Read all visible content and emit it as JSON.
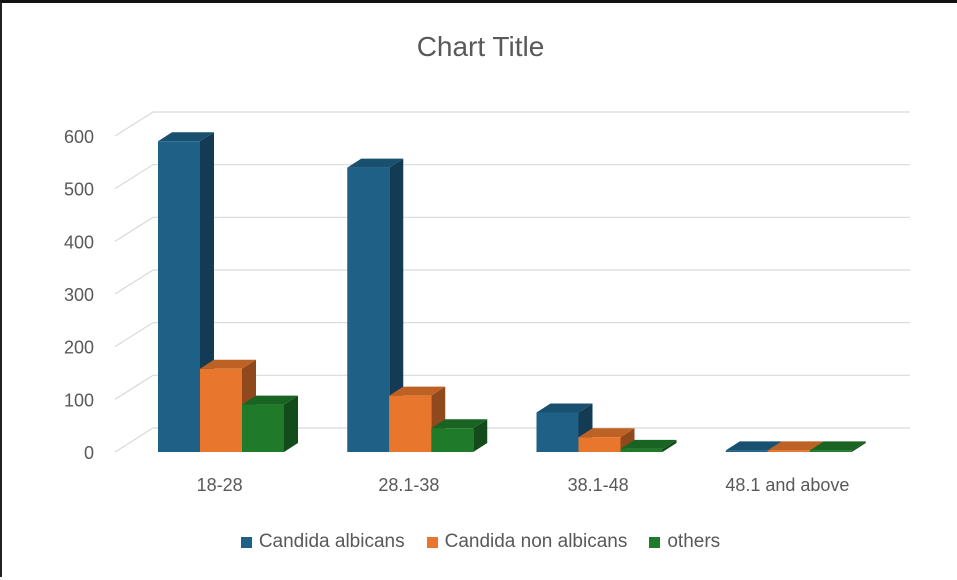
{
  "chart_data": {
    "type": "bar",
    "title": "Chart Title",
    "categories": [
      "18-28",
      "28.1-38",
      "38.1-48",
      "48.1 and above"
    ],
    "series": [
      {
        "name": "Candida albicans",
        "color": "#1f6087",
        "values": [
          590,
          540,
          75,
          3
        ]
      },
      {
        "name": "Candida non albicans",
        "color": "#e8762d",
        "values": [
          158,
          107,
          28,
          3
        ]
      },
      {
        "name": "others",
        "color": "#1f7a2a",
        "values": [
          90,
          45,
          6,
          3
        ]
      }
    ],
    "ylim": [
      0,
      600
    ],
    "yticks": [
      "0",
      "100",
      "200",
      "300",
      "400",
      "500",
      "600"
    ],
    "grid": true,
    "legend": "bottom",
    "style": "3d-clustered-column"
  }
}
